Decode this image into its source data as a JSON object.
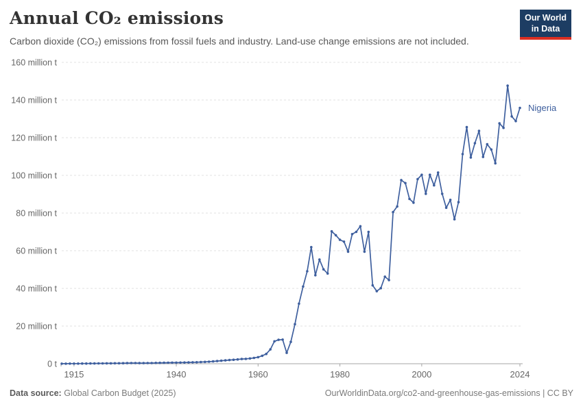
{
  "header": {
    "title": "Annual CO₂ emissions",
    "subtitle": "Carbon dioxide (CO₂) emissions from fossil fuels and industry. Land-use change emissions are not included.",
    "logo": {
      "line1": "Our World",
      "line2": "in Data",
      "bg_color": "#1d3d63",
      "accent_color": "#dc2f22"
    }
  },
  "chart_data": {
    "type": "line",
    "title": "Annual CO₂ emissions",
    "entity_label": "Nigeria",
    "unit": "million t",
    "xlim": [
      1912,
      2024
    ],
    "ylim": [
      0,
      160
    ],
    "grid": "horizontal-dashed",
    "legend_position": "end-of-line",
    "x_ticks": [
      1915,
      1940,
      1960,
      1980,
      2000,
      2024
    ],
    "y_ticks": [
      {
        "value": 0,
        "label": "0 t"
      },
      {
        "value": 20,
        "label": "20 million t"
      },
      {
        "value": 40,
        "label": "40 million t"
      },
      {
        "value": 60,
        "label": "60 million t"
      },
      {
        "value": 80,
        "label": "80 million t"
      },
      {
        "value": 100,
        "label": "100 million t"
      },
      {
        "value": 120,
        "label": "120 million t"
      },
      {
        "value": 140,
        "label": "140 million t"
      },
      {
        "value": 160,
        "label": "160 million t"
      }
    ],
    "series": [
      {
        "name": "Nigeria",
        "color": "#3e5f9e",
        "x": [
          1912,
          1913,
          1914,
          1915,
          1916,
          1917,
          1918,
          1919,
          1920,
          1921,
          1922,
          1923,
          1924,
          1925,
          1926,
          1927,
          1928,
          1929,
          1930,
          1931,
          1932,
          1933,
          1934,
          1935,
          1936,
          1937,
          1938,
          1939,
          1940,
          1941,
          1942,
          1943,
          1944,
          1945,
          1946,
          1947,
          1948,
          1949,
          1950,
          1951,
          1952,
          1953,
          1954,
          1955,
          1956,
          1957,
          1958,
          1959,
          1960,
          1961,
          1962,
          1963,
          1964,
          1965,
          1966,
          1967,
          1968,
          1969,
          1970,
          1971,
          1972,
          1973,
          1974,
          1975,
          1976,
          1977,
          1978,
          1979,
          1980,
          1981,
          1982,
          1983,
          1984,
          1985,
          1986,
          1987,
          1988,
          1989,
          1990,
          1991,
          1992,
          1993,
          1994,
          1995,
          1996,
          1997,
          1998,
          1999,
          2000,
          2001,
          2002,
          2003,
          2004,
          2005,
          2006,
          2007,
          2008,
          2009,
          2010,
          2011,
          2012,
          2013,
          2014,
          2015,
          2016,
          2017,
          2018,
          2019,
          2020,
          2021,
          2022,
          2023,
          2024
        ],
        "values": [
          0.03,
          0.05,
          0.06,
          0.07,
          0.09,
          0.1,
          0.12,
          0.14,
          0.16,
          0.17,
          0.18,
          0.2,
          0.22,
          0.24,
          0.26,
          0.29,
          0.32,
          0.35,
          0.35,
          0.33,
          0.34,
          0.36,
          0.38,
          0.42,
          0.46,
          0.52,
          0.55,
          0.58,
          0.6,
          0.63,
          0.65,
          0.7,
          0.75,
          0.8,
          0.9,
          1.0,
          1.1,
          1.25,
          1.4,
          1.6,
          1.8,
          1.95,
          2.1,
          2.3,
          2.5,
          2.6,
          2.8,
          3.1,
          3.5,
          4.2,
          5.2,
          7.6,
          11.9,
          12.7,
          12.8,
          5.8,
          11.6,
          21.0,
          31.9,
          41.0,
          49.1,
          61.9,
          47.0,
          55.3,
          50.1,
          47.9,
          70.3,
          68.2,
          65.8,
          64.8,
          59.5,
          68.8,
          70.0,
          73.0,
          59.5,
          70.0,
          41.6,
          38.5,
          40.1,
          46.2,
          44.4,
          80.5,
          83.5,
          97.5,
          95.9,
          87.5,
          85.5,
          98.0,
          100.3,
          90.2,
          100.3,
          94.7,
          101.5,
          90.2,
          82.8,
          87.0,
          76.7,
          85.8,
          111.3,
          125.6,
          109.5,
          117.1,
          123.6,
          109.8,
          116.5,
          113.7,
          106.4,
          127.6,
          125.2,
          147.6,
          131.3,
          128.8,
          135.8
        ]
      }
    ]
  },
  "footer": {
    "source_label": "Data source:",
    "source_value": "Global Carbon Budget (2025)",
    "right_text": "OurWorldinData.org/co2-and-greenhouse-gas-emissions | CC BY"
  }
}
